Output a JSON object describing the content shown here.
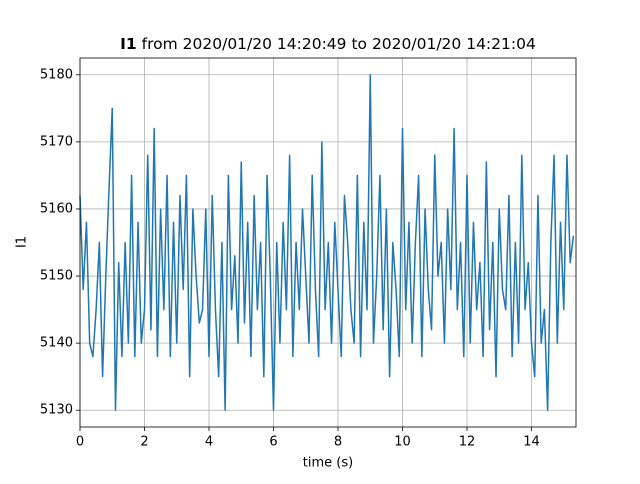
{
  "chart_data": {
    "type": "line",
    "title_parts": [
      "I1",
      "from 2020/01/20 14:20:49 to 2020/01/20 14:21:04"
    ],
    "xlabel": "time (s)",
    "ylabel": "I1",
    "x": [
      0,
      0.1,
      0.2,
      0.3,
      0.4,
      0.5,
      0.6,
      0.7,
      0.8,
      0.9,
      1,
      1.1,
      1.2,
      1.3,
      1.4,
      1.5,
      1.6,
      1.7,
      1.8,
      1.9,
      2,
      2.1,
      2.2,
      2.3,
      2.4,
      2.5,
      2.6,
      2.7,
      2.8,
      2.9,
      3,
      3.1,
      3.2,
      3.3,
      3.4,
      3.5,
      3.6,
      3.7,
      3.8,
      3.9,
      4,
      4.1,
      4.2,
      4.3,
      4.4,
      4.5,
      4.6,
      4.7,
      4.8,
      4.9,
      5,
      5.1,
      5.2,
      5.3,
      5.4,
      5.5,
      5.6,
      5.7,
      5.8,
      5.9,
      6,
      6.1,
      6.2,
      6.3,
      6.4,
      6.5,
      6.6,
      6.7,
      6.8,
      6.9,
      7,
      7.1,
      7.2,
      7.3,
      7.4,
      7.5,
      7.6,
      7.7,
      7.8,
      7.9,
      8,
      8.1,
      8.2,
      8.3,
      8.4,
      8.5,
      8.6,
      8.7,
      8.8,
      8.9,
      9,
      9.1,
      9.2,
      9.3,
      9.4,
      9.5,
      9.6,
      9.7,
      9.8,
      9.9,
      10,
      10.1,
      10.2,
      10.3,
      10.4,
      10.5,
      10.6,
      10.7,
      10.8,
      10.9,
      11,
      11.1,
      11.2,
      11.3,
      11.4,
      11.5,
      11.6,
      11.7,
      11.8,
      11.9,
      12,
      12.1,
      12.2,
      12.3,
      12.4,
      12.5,
      12.6,
      12.7,
      12.8,
      12.9,
      13,
      13.1,
      13.2,
      13.3,
      13.4,
      13.5,
      13.6,
      13.7,
      13.8,
      13.9,
      14,
      14.1,
      14.2,
      14.3,
      14.4,
      14.5,
      14.6,
      14.7,
      14.8,
      14.9,
      15,
      15.1,
      15.2,
      15.3
    ],
    "series": [
      {
        "color": "#1f77b4",
        "values": [
          5162,
          5148,
          5158,
          5140,
          5138,
          5145,
          5155,
          5135,
          5150,
          5163,
          5175,
          5130,
          5152,
          5138,
          5155,
          5140,
          5165,
          5138,
          5158,
          5140,
          5145,
          5168,
          5142,
          5172,
          5138,
          5160,
          5145,
          5165,
          5138,
          5158,
          5140,
          5162,
          5148,
          5165,
          5135,
          5160,
          5150,
          5143,
          5145,
          5160,
          5138,
          5162,
          5145,
          5135,
          5155,
          5130,
          5165,
          5145,
          5153,
          5140,
          5167,
          5143,
          5158,
          5138,
          5162,
          5145,
          5155,
          5135,
          5165,
          5150,
          5130,
          5155,
          5140,
          5158,
          5145,
          5168,
          5138,
          5155,
          5145,
          5160,
          5150,
          5140,
          5165,
          5148,
          5138,
          5170,
          5145,
          5155,
          5140,
          5158,
          5148,
          5138,
          5162,
          5155,
          5145,
          5140,
          5165,
          5138,
          5158,
          5145,
          5180,
          5140,
          5150,
          5165,
          5142,
          5160,
          5135,
          5155,
          5148,
          5138,
          5172,
          5145,
          5158,
          5140,
          5155,
          5165,
          5138,
          5160,
          5148,
          5142,
          5168,
          5150,
          5155,
          5140,
          5160,
          5148,
          5172,
          5145,
          5155,
          5138,
          5165,
          5140,
          5158,
          5145,
          5152,
          5138,
          5167,
          5142,
          5155,
          5135,
          5160,
          5148,
          5145,
          5162,
          5138,
          5155,
          5140,
          5168,
          5145,
          5152,
          5140,
          5135,
          5162,
          5140,
          5145,
          5130,
          5155,
          5168,
          5140,
          5158,
          5145,
          5168,
          5152,
          5156
        ]
      }
    ],
    "xlim": [
      0,
      15.38
    ],
    "ylim": [
      5127.5,
      5182.5
    ],
    "xticks": [
      0,
      2,
      4,
      6,
      8,
      10,
      12,
      14
    ],
    "yticks": [
      5130,
      5140,
      5150,
      5160,
      5170,
      5180
    ],
    "grid": true
  }
}
